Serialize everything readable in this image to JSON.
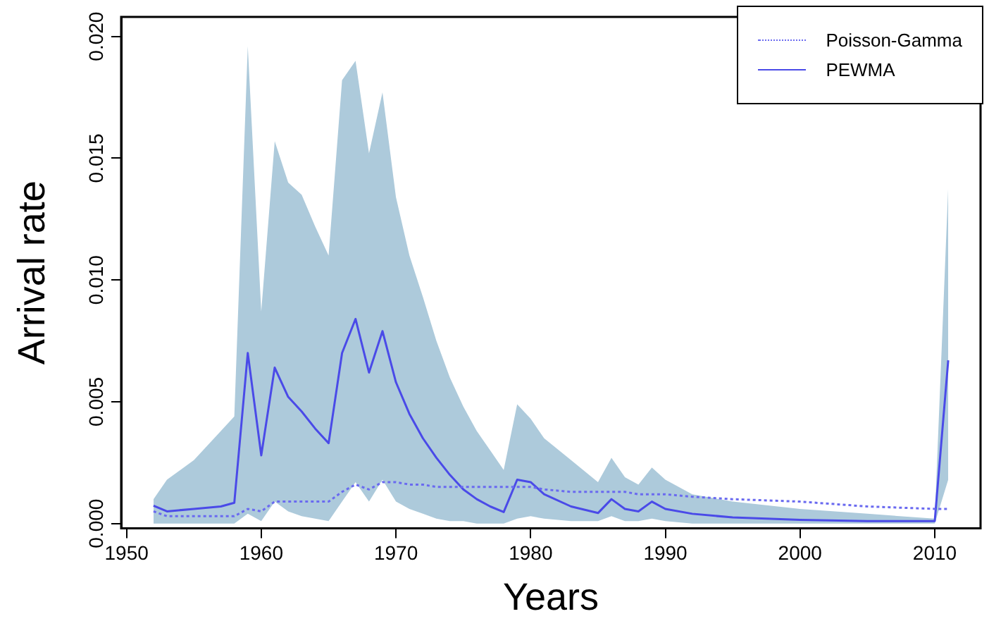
{
  "chart_data": {
    "type": "line",
    "xlabel": "Years",
    "ylabel": "Arrival rate",
    "x": [
      1952,
      1953,
      1955,
      1957,
      1958,
      1959,
      1960,
      1961,
      1962,
      1963,
      1964,
      1965,
      1966,
      1967,
      1968,
      1969,
      1970,
      1971,
      1972,
      1973,
      1974,
      1975,
      1976,
      1977,
      1978,
      1979,
      1980,
      1981,
      1983,
      1985,
      1986,
      1987,
      1988,
      1989,
      1990,
      1992,
      1995,
      2000,
      2005,
      2010,
      2011
    ],
    "series": [
      {
        "name": "Poisson-Gamma",
        "color": "#6a6af0",
        "line_style": "dotted",
        "values": [
          0.0005,
          0.0003,
          0.0003,
          0.0003,
          0.0003,
          0.0006,
          0.0005,
          0.0009,
          0.0009,
          0.0009,
          0.0009,
          0.0009,
          0.0013,
          0.0016,
          0.0014,
          0.0017,
          0.0017,
          0.0016,
          0.0016,
          0.0015,
          0.0015,
          0.0015,
          0.0015,
          0.0015,
          0.0015,
          0.0015,
          0.0015,
          0.0014,
          0.0013,
          0.0013,
          0.0013,
          0.0013,
          0.0012,
          0.0012,
          0.0012,
          0.0011,
          0.001,
          0.0009,
          0.0007,
          0.0006,
          0.0006
        ]
      },
      {
        "name": "PEWMA",
        "color": "#4a4ae8",
        "line_style": "solid",
        "values": [
          0.00073,
          0.0005,
          0.0006,
          0.0007,
          0.00085,
          0.007,
          0.0028,
          0.0064,
          0.0052,
          0.0046,
          0.0039,
          0.0033,
          0.007,
          0.0084,
          0.0062,
          0.0079,
          0.0058,
          0.0045,
          0.0035,
          0.0027,
          0.002,
          0.0014,
          0.001,
          0.0007,
          0.00047,
          0.0018,
          0.0017,
          0.0012,
          0.0007,
          0.00043,
          0.001,
          0.0006,
          0.0005,
          0.0009,
          0.0006,
          0.0004,
          0.00025,
          0.00015,
          0.0001,
          0.0001,
          0.0067
        ],
        "upper": [
          0.001,
          0.0018,
          0.0026,
          0.0038,
          0.0044,
          0.0196,
          0.0087,
          0.0157,
          0.014,
          0.0135,
          0.0122,
          0.011,
          0.0182,
          0.019,
          0.0152,
          0.0177,
          0.0134,
          0.011,
          0.0093,
          0.0075,
          0.006,
          0.0048,
          0.0038,
          0.003,
          0.0022,
          0.0049,
          0.0043,
          0.0035,
          0.0026,
          0.0017,
          0.0027,
          0.0019,
          0.0016,
          0.0023,
          0.0018,
          0.0012,
          0.0009,
          0.0006,
          0.0004,
          0.0002,
          0.0138
        ],
        "lower": [
          0,
          0,
          0,
          0,
          0,
          0.0004,
          0.0001,
          0.0009,
          0.0005,
          0.0003,
          0.0002,
          0.0001,
          0.0009,
          0.0017,
          0.0009,
          0.0018,
          0.0009,
          0.0006,
          0.0004,
          0.0002,
          0.0001,
          0.0001,
          0,
          0,
          0,
          0.0002,
          0.0003,
          0.0002,
          0.0001,
          0.0001,
          0.0003,
          0.0001,
          0.0001,
          0.0002,
          0.0001,
          0,
          0,
          0,
          0,
          0,
          0.0018
        ]
      }
    ],
    "xlim": [
      1949.6,
      2013.4
    ],
    "xticks": [
      1950,
      1960,
      1970,
      1980,
      1990,
      2000,
      2010
    ],
    "ylim": [
      -0.0002,
      0.0208
    ],
    "yticks": [
      {
        "value": 0,
        "label": "0.000"
      },
      {
        "value": 0.005,
        "label": "0.005"
      },
      {
        "value": 0.01,
        "label": "0.010"
      },
      {
        "value": 0.015,
        "label": "0.015"
      },
      {
        "value": 0.02,
        "label": "0.020"
      }
    ],
    "grid": false,
    "legend": "top right",
    "marker": "none"
  }
}
